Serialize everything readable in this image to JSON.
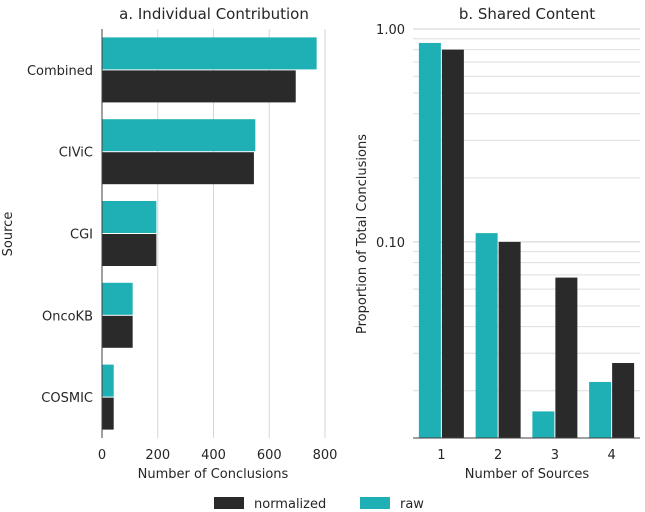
{
  "chart_data": [
    {
      "type": "bar",
      "orientation": "horizontal",
      "title": "a. Individual Contribution",
      "xlabel": "Number of Conclusions",
      "ylabel": "Source",
      "categories": [
        "Combined",
        "CIViC",
        "CGI",
        "OncoKB",
        "COSMIC"
      ],
      "xlim": [
        0,
        800
      ],
      "xticks": [
        "0",
        "200",
        "400",
        "600",
        "800"
      ],
      "grid": "vertical",
      "series": [
        {
          "name": "raw",
          "color": "#1fb0b5",
          "values": [
            770,
            550,
            195,
            110,
            42
          ]
        },
        {
          "name": "normalized",
          "color": "#2a2a2a",
          "values": [
            695,
            545,
            195,
            110,
            42
          ]
        }
      ]
    },
    {
      "type": "bar",
      "title": "b. Shared Content",
      "xlabel": "Number of Sources",
      "ylabel": "Proportion of Total Conclusions",
      "categories": [
        "1",
        "2",
        "3",
        "4"
      ],
      "yscale": "log",
      "ylim": [
        0.012,
        1.0
      ],
      "yticks": [
        {
          "value": 1.0,
          "label": "1.00"
        },
        {
          "value": 0.1,
          "label": "0.10"
        }
      ],
      "grid": "horizontal",
      "series": [
        {
          "name": "raw",
          "color": "#1fb0b5",
          "values": [
            0.86,
            0.11,
            0.016,
            0.022
          ]
        },
        {
          "name": "normalized",
          "color": "#2a2a2a",
          "values": [
            0.8,
            0.1,
            0.068,
            0.027
          ]
        }
      ]
    }
  ],
  "legend": {
    "placement": "bottom-center",
    "items": [
      {
        "label": "normalized",
        "color": "#2a2a2a"
      },
      {
        "label": "raw",
        "color": "#1fb0b5"
      }
    ]
  }
}
